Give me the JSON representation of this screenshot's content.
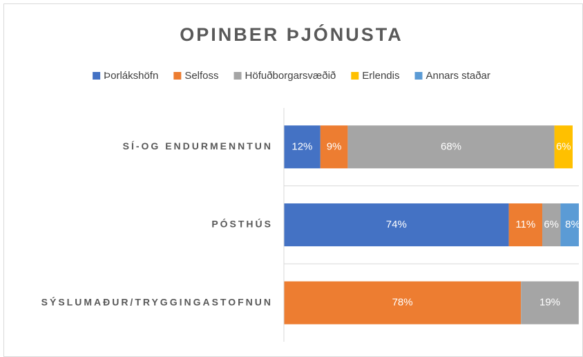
{
  "chart_data": {
    "type": "stacked-bar-horizontal",
    "title": "OPINBER ÞJÓNUSTA",
    "categories": [
      "SÍ-OG ENDURMENNTUN",
      "PÓSTHÚS",
      "SÝSLUMAÐUR/TRYGGINGASTOFNUN"
    ],
    "xlim": [
      0,
      100
    ],
    "legend": "top",
    "series": [
      {
        "name": "Þorlákshöfn",
        "color": "#4472c4",
        "values": [
          12,
          74,
          null
        ],
        "value_labels": [
          "12%",
          "74%",
          null
        ]
      },
      {
        "name": "Selfoss",
        "color": "#ed7d31",
        "values": [
          9,
          11,
          78
        ],
        "value_labels": [
          "9%",
          "11%",
          "78%"
        ]
      },
      {
        "name": "Höfuðborgarsvæðið",
        "color": "#a5a5a5",
        "values": [
          68,
          6,
          19
        ],
        "value_labels": [
          "68%",
          "6%",
          "19%"
        ]
      },
      {
        "name": "Erlendis",
        "color": "#ffc000",
        "values": [
          6,
          null,
          null
        ],
        "value_labels": [
          "6%",
          null,
          null
        ]
      },
      {
        "name": "Annars staðar",
        "color": "#5b9bd5",
        "values": [
          null,
          8,
          null
        ],
        "value_labels": [
          null,
          "8%",
          null
        ]
      }
    ]
  }
}
